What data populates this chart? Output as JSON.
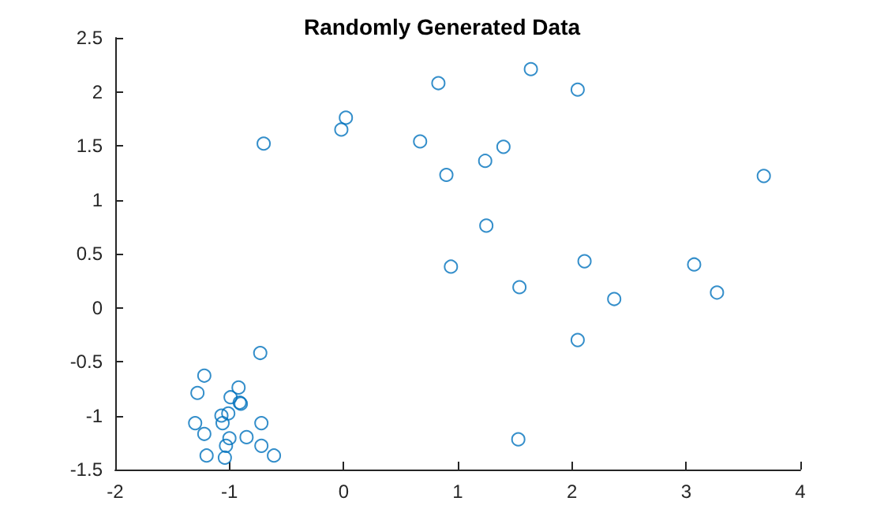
{
  "chart_data": {
    "type": "scatter",
    "title": "Randomly Generated Data",
    "marker": "circle",
    "grid": false,
    "xlim": [
      -2,
      4
    ],
    "xticks": [
      -2,
      -1,
      0,
      1,
      2,
      3,
      4
    ],
    "ylim": [
      -1.5,
      2.5
    ],
    "yticks": [
      -1.5,
      -1,
      -0.5,
      0,
      0.5,
      1,
      1.5,
      2,
      2.5
    ],
    "series": [
      {
        "color": "#0072bd",
        "x": [
          -0.7,
          -0.02,
          0.02,
          0.67,
          0.83,
          0.9,
          1.24,
          1.4,
          1.64,
          2.05,
          1.25,
          0.94,
          1.54,
          2.11,
          2.37,
          3.07,
          3.27,
          3.68,
          2.05,
          1.53,
          -0.73,
          -1.22,
          -1.28,
          -0.92,
          -0.99,
          -0.91,
          -0.9,
          -1.01,
          -1.07,
          -1.06,
          -1.3,
          -0.72,
          -1.22,
          -0.85,
          -1.0,
          -1.03,
          -0.72,
          -1.2,
          -1.04,
          -0.61
        ],
        "values": [
          1.52,
          1.65,
          1.76,
          1.54,
          2.08,
          1.23,
          1.36,
          1.49,
          2.21,
          2.02,
          0.76,
          0.38,
          0.19,
          0.43,
          0.08,
          0.4,
          0.14,
          1.22,
          -0.3,
          -1.22,
          -0.42,
          -0.63,
          -0.79,
          -0.74,
          -0.83,
          -0.88,
          -0.89,
          -0.98,
          -1.0,
          -1.07,
          -1.07,
          -1.07,
          -1.17,
          -1.2,
          -1.21,
          -1.28,
          -1.28,
          -1.37,
          -1.39,
          -1.37
        ]
      }
    ]
  }
}
